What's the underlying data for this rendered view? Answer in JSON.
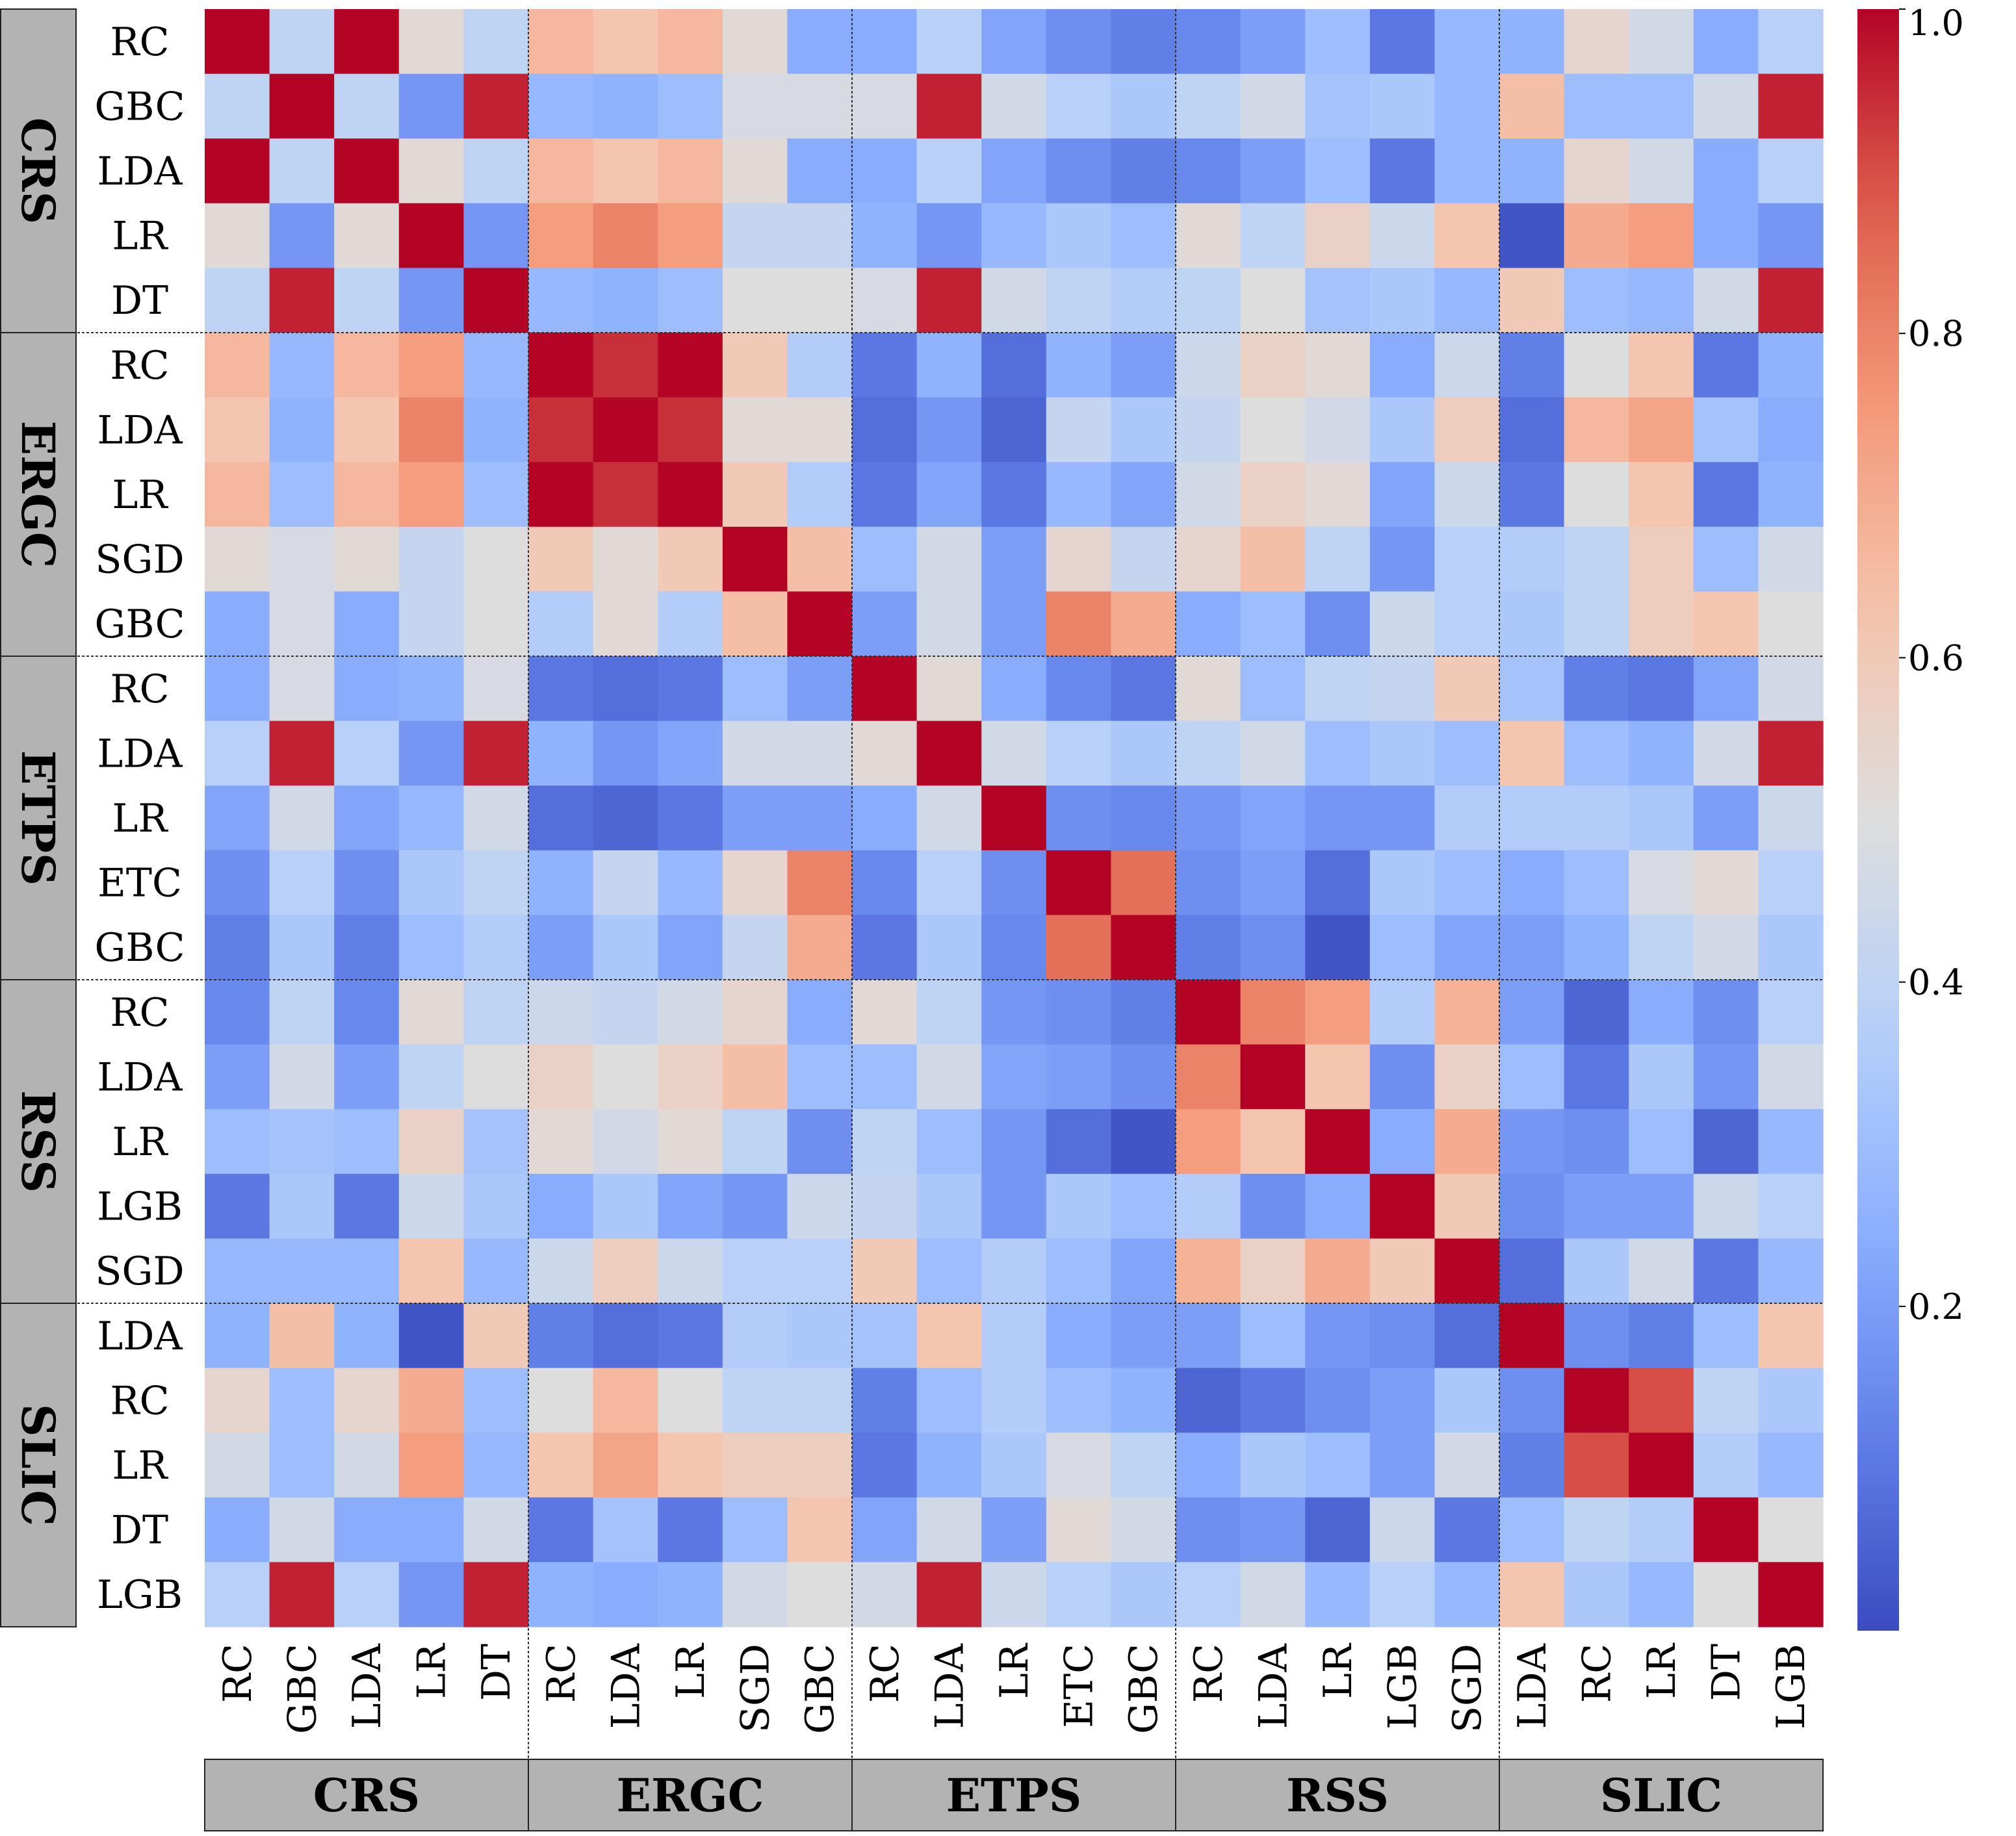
{
  "chart_data": {
    "type": "heatmap",
    "title": "",
    "colormap": "coolwarm",
    "vmin": 0.0,
    "vmax": 1.0,
    "colorbar_ticks": [
      "1.0",
      "0.8",
      "0.6",
      "0.4",
      "0.2"
    ],
    "colorbar_tick_values": [
      1.0,
      0.8,
      0.6,
      0.4,
      0.2
    ],
    "groups": [
      {
        "name": "CRS",
        "models": [
          "RC",
          "GBC",
          "LDA",
          "LR",
          "DT"
        ]
      },
      {
        "name": "ERGC",
        "models": [
          "RC",
          "LDA",
          "LR",
          "SGD",
          "GBC"
        ]
      },
      {
        "name": "ETPS",
        "models": [
          "RC",
          "LDA",
          "LR",
          "ETC",
          "GBC"
        ]
      },
      {
        "name": "RSS",
        "models": [
          "RC",
          "LDA",
          "LR",
          "LGB",
          "SGD"
        ]
      },
      {
        "name": "SLIC",
        "models": [
          "LDA",
          "RC",
          "LR",
          "DT",
          "LGB"
        ]
      }
    ],
    "matrix": [
      [
        1.0,
        0.4,
        1.0,
        0.52,
        0.4,
        0.66,
        0.62,
        0.66,
        0.52,
        0.24,
        0.24,
        0.38,
        0.22,
        0.16,
        0.12,
        0.14,
        0.2,
        0.3,
        0.1,
        0.28,
        0.26,
        0.54,
        0.46,
        0.24,
        0.38
      ],
      [
        0.4,
        1.0,
        0.4,
        0.18,
        0.96,
        0.28,
        0.26,
        0.3,
        0.48,
        0.48,
        0.48,
        0.96,
        0.46,
        0.38,
        0.34,
        0.4,
        0.46,
        0.32,
        0.34,
        0.28,
        0.64,
        0.3,
        0.3,
        0.46,
        0.96
      ],
      [
        1.0,
        0.4,
        1.0,
        0.52,
        0.4,
        0.66,
        0.62,
        0.66,
        0.52,
        0.24,
        0.24,
        0.38,
        0.22,
        0.16,
        0.12,
        0.14,
        0.2,
        0.3,
        0.1,
        0.28,
        0.26,
        0.54,
        0.46,
        0.24,
        0.38
      ],
      [
        0.52,
        0.18,
        0.52,
        1.0,
        0.18,
        0.74,
        0.8,
        0.74,
        0.42,
        0.42,
        0.26,
        0.18,
        0.28,
        0.34,
        0.3,
        0.52,
        0.4,
        0.56,
        0.44,
        0.62,
        0.02,
        0.7,
        0.74,
        0.24,
        0.18
      ],
      [
        0.4,
        0.96,
        0.4,
        0.18,
        1.0,
        0.28,
        0.26,
        0.3,
        0.5,
        0.5,
        0.48,
        0.96,
        0.46,
        0.4,
        0.36,
        0.4,
        0.5,
        0.32,
        0.34,
        0.28,
        0.6,
        0.3,
        0.28,
        0.46,
        0.96
      ],
      [
        0.66,
        0.28,
        0.66,
        0.74,
        0.28,
        1.0,
        0.94,
        1.0,
        0.6,
        0.36,
        0.1,
        0.26,
        0.08,
        0.26,
        0.2,
        0.44,
        0.56,
        0.52,
        0.24,
        0.44,
        0.12,
        0.5,
        0.62,
        0.1,
        0.26
      ],
      [
        0.62,
        0.26,
        0.62,
        0.8,
        0.26,
        0.94,
        1.0,
        0.94,
        0.52,
        0.52,
        0.08,
        0.18,
        0.06,
        0.42,
        0.34,
        0.42,
        0.5,
        0.46,
        0.34,
        0.58,
        0.08,
        0.66,
        0.72,
        0.32,
        0.24
      ],
      [
        0.66,
        0.3,
        0.66,
        0.74,
        0.3,
        1.0,
        0.94,
        1.0,
        0.6,
        0.36,
        0.1,
        0.22,
        0.1,
        0.28,
        0.22,
        0.46,
        0.56,
        0.52,
        0.22,
        0.44,
        0.1,
        0.5,
        0.62,
        0.1,
        0.26
      ],
      [
        0.52,
        0.48,
        0.52,
        0.42,
        0.5,
        0.6,
        0.52,
        0.6,
        1.0,
        0.64,
        0.3,
        0.46,
        0.2,
        0.54,
        0.42,
        0.54,
        0.64,
        0.4,
        0.18,
        0.38,
        0.36,
        0.4,
        0.58,
        0.3,
        0.46
      ],
      [
        0.24,
        0.48,
        0.24,
        0.42,
        0.5,
        0.36,
        0.52,
        0.36,
        0.64,
        1.0,
        0.2,
        0.46,
        0.2,
        0.8,
        0.7,
        0.24,
        0.3,
        0.16,
        0.44,
        0.38,
        0.34,
        0.4,
        0.58,
        0.62,
        0.5
      ],
      [
        0.24,
        0.48,
        0.24,
        0.26,
        0.48,
        0.1,
        0.08,
        0.1,
        0.3,
        0.2,
        1.0,
        0.52,
        0.24,
        0.14,
        0.1,
        0.52,
        0.3,
        0.4,
        0.42,
        0.6,
        0.32,
        0.12,
        0.1,
        0.22,
        0.46
      ],
      [
        0.38,
        0.96,
        0.38,
        0.18,
        0.96,
        0.26,
        0.18,
        0.22,
        0.46,
        0.46,
        0.52,
        1.0,
        0.46,
        0.38,
        0.34,
        0.4,
        0.46,
        0.3,
        0.34,
        0.3,
        0.62,
        0.3,
        0.26,
        0.46,
        0.96
      ],
      [
        0.22,
        0.46,
        0.22,
        0.28,
        0.46,
        0.08,
        0.06,
        0.1,
        0.2,
        0.2,
        0.24,
        0.46,
        1.0,
        0.16,
        0.14,
        0.18,
        0.22,
        0.18,
        0.18,
        0.36,
        0.36,
        0.36,
        0.34,
        0.2,
        0.44
      ],
      [
        0.16,
        0.38,
        0.16,
        0.34,
        0.4,
        0.26,
        0.42,
        0.28,
        0.54,
        0.8,
        0.14,
        0.38,
        0.16,
        1.0,
        0.84,
        0.16,
        0.2,
        0.08,
        0.34,
        0.3,
        0.24,
        0.3,
        0.48,
        0.52,
        0.38
      ],
      [
        0.12,
        0.34,
        0.12,
        0.3,
        0.36,
        0.2,
        0.34,
        0.22,
        0.42,
        0.7,
        0.1,
        0.34,
        0.14,
        0.84,
        1.0,
        0.12,
        0.16,
        0.02,
        0.3,
        0.22,
        0.2,
        0.26,
        0.4,
        0.46,
        0.34
      ],
      [
        0.14,
        0.4,
        0.14,
        0.52,
        0.4,
        0.44,
        0.42,
        0.46,
        0.54,
        0.24,
        0.52,
        0.4,
        0.18,
        0.16,
        0.12,
        1.0,
        0.8,
        0.74,
        0.36,
        0.68,
        0.2,
        0.06,
        0.24,
        0.16,
        0.38
      ],
      [
        0.2,
        0.46,
        0.2,
        0.4,
        0.5,
        0.56,
        0.5,
        0.56,
        0.64,
        0.3,
        0.3,
        0.46,
        0.22,
        0.2,
        0.16,
        0.8,
        1.0,
        0.62,
        0.16,
        0.56,
        0.3,
        0.1,
        0.34,
        0.18,
        0.46
      ],
      [
        0.3,
        0.32,
        0.3,
        0.56,
        0.32,
        0.52,
        0.46,
        0.52,
        0.4,
        0.16,
        0.4,
        0.3,
        0.18,
        0.08,
        0.02,
        0.74,
        0.62,
        1.0,
        0.24,
        0.7,
        0.18,
        0.16,
        0.3,
        0.06,
        0.28
      ],
      [
        0.1,
        0.34,
        0.1,
        0.44,
        0.34,
        0.24,
        0.34,
        0.22,
        0.18,
        0.44,
        0.42,
        0.34,
        0.18,
        0.34,
        0.3,
        0.36,
        0.16,
        0.24,
        1.0,
        0.6,
        0.16,
        0.2,
        0.2,
        0.44,
        0.38
      ],
      [
        0.28,
        0.28,
        0.28,
        0.62,
        0.28,
        0.44,
        0.58,
        0.44,
        0.38,
        0.38,
        0.6,
        0.3,
        0.36,
        0.3,
        0.22,
        0.68,
        0.56,
        0.7,
        0.6,
        1.0,
        0.08,
        0.34,
        0.46,
        0.1,
        0.28
      ],
      [
        0.26,
        0.64,
        0.26,
        0.02,
        0.6,
        0.12,
        0.08,
        0.1,
        0.36,
        0.34,
        0.32,
        0.62,
        0.36,
        0.24,
        0.2,
        0.2,
        0.3,
        0.18,
        0.16,
        0.08,
        1.0,
        0.16,
        0.12,
        0.3,
        0.62
      ],
      [
        0.54,
        0.3,
        0.54,
        0.7,
        0.3,
        0.5,
        0.66,
        0.5,
        0.4,
        0.4,
        0.12,
        0.3,
        0.36,
        0.3,
        0.26,
        0.06,
        0.1,
        0.16,
        0.2,
        0.34,
        0.16,
        1.0,
        0.9,
        0.4,
        0.34
      ],
      [
        0.46,
        0.3,
        0.46,
        0.74,
        0.28,
        0.62,
        0.72,
        0.62,
        0.58,
        0.58,
        0.1,
        0.26,
        0.34,
        0.48,
        0.4,
        0.24,
        0.34,
        0.3,
        0.2,
        0.46,
        0.12,
        0.9,
        1.0,
        0.36,
        0.28
      ],
      [
        0.24,
        0.46,
        0.24,
        0.24,
        0.46,
        0.1,
        0.32,
        0.1,
        0.3,
        0.62,
        0.22,
        0.46,
        0.2,
        0.52,
        0.46,
        0.16,
        0.18,
        0.06,
        0.44,
        0.1,
        0.3,
        0.4,
        0.36,
        1.0,
        0.5
      ],
      [
        0.38,
        0.96,
        0.38,
        0.18,
        0.96,
        0.26,
        0.24,
        0.26,
        0.46,
        0.5,
        0.46,
        0.96,
        0.44,
        0.38,
        0.34,
        0.38,
        0.46,
        0.28,
        0.38,
        0.28,
        0.62,
        0.34,
        0.28,
        0.5,
        1.0
      ]
    ]
  }
}
